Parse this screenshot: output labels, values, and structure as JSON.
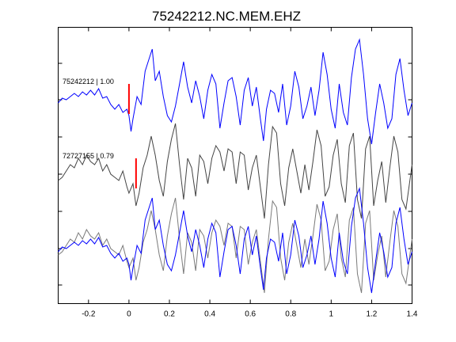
{
  "chart_data": {
    "type": "line",
    "title": "75242212.NC.MEM.EHZ",
    "xlabel": "",
    "ylabel": "",
    "xlim": [
      -0.35,
      1.4
    ],
    "xticks": [
      -0.2,
      0,
      0.2,
      0.4,
      0.6,
      0.8,
      1,
      1.2,
      1.4
    ],
    "xtick_labels": [
      "-0.2",
      "0",
      "0.2",
      "0.4",
      "0.6",
      "0.8",
      "1",
      "1.2",
      "1.4"
    ],
    "grid": false,
    "colors": {
      "blue": "#0000ff",
      "gray": "#444444",
      "gray_overlay": "#7a7a7a",
      "pick": "#ff0000"
    },
    "panels": [
      {
        "label": "75242212 | 1.00",
        "color": "#0000ff",
        "pick_time": 0.0
      },
      {
        "label": "72727155 | 0.79",
        "color": "#444444",
        "pick_time": 0.035
      },
      {
        "label": "",
        "overlay": true
      }
    ],
    "series": [
      {
        "trace": "75242212",
        "x": [
          -0.35,
          -0.33,
          -0.31,
          -0.29,
          -0.27,
          -0.25,
          -0.23,
          -0.21,
          -0.19,
          -0.17,
          -0.15,
          -0.13,
          -0.11,
          -0.09,
          -0.07,
          -0.05,
          -0.03,
          -0.01,
          0.0,
          0.01,
          0.02,
          0.04,
          0.06,
          0.08,
          0.1,
          0.115,
          0.13,
          0.15,
          0.17,
          0.19,
          0.21,
          0.23,
          0.25,
          0.27,
          0.29,
          0.31,
          0.33,
          0.35,
          0.37,
          0.39,
          0.41,
          0.43,
          0.45,
          0.47,
          0.49,
          0.51,
          0.53,
          0.55,
          0.57,
          0.59,
          0.61,
          0.63,
          0.65,
          0.665,
          0.68,
          0.7,
          0.72,
          0.74,
          0.76,
          0.78,
          0.8,
          0.82,
          0.84,
          0.86,
          0.88,
          0.9,
          0.92,
          0.94,
          0.96,
          0.98,
          1.0,
          1.02,
          1.04,
          1.06,
          1.08,
          1.1,
          1.12,
          1.14,
          1.16,
          1.18,
          1.2,
          1.22,
          1.24,
          1.26,
          1.28,
          1.3,
          1.32,
          1.34,
          1.36,
          1.38,
          1.4
        ],
        "y": [
          -0.1,
          0.05,
          0.0,
          0.1,
          0.2,
          0.1,
          0.25,
          0.15,
          0.3,
          0.15,
          0.35,
          0.05,
          0.1,
          -0.15,
          -0.3,
          -0.15,
          -0.4,
          -0.3,
          -0.5,
          -1.0,
          -0.6,
          0.1,
          -0.15,
          0.9,
          1.3,
          1.6,
          0.6,
          0.9,
          0.1,
          -0.5,
          -0.7,
          -0.2,
          0.5,
          1.2,
          0.4,
          -0.1,
          0.6,
          0.1,
          -0.6,
          0.3,
          0.8,
          0.5,
          -0.9,
          -0.1,
          0.6,
          0.7,
          0.1,
          -0.8,
          0.3,
          0.7,
          -0.2,
          0.4,
          -0.6,
          -1.3,
          -0.3,
          0.3,
          0.2,
          -0.4,
          0.5,
          -0.8,
          -0.2,
          0.9,
          0.4,
          -0.6,
          -0.2,
          0.4,
          -0.5,
          0.3,
          1.5,
          0.8,
          -0.3,
          -0.9,
          0.5,
          -0.4,
          -0.8,
          0.7,
          1.6,
          1.9,
          0.8,
          -0.6,
          -1.4,
          -0.4,
          0.5,
          -0.1,
          -0.9,
          -0.6,
          0.8,
          1.3,
          0.3,
          -0.5,
          -0.1
        ]
      },
      {
        "trace": "72727155",
        "x": [
          -0.35,
          -0.33,
          -0.31,
          -0.29,
          -0.27,
          -0.25,
          -0.23,
          -0.21,
          -0.19,
          -0.17,
          -0.15,
          -0.13,
          -0.11,
          -0.09,
          -0.07,
          -0.05,
          -0.03,
          -0.01,
          0.0,
          0.02,
          0.035,
          0.05,
          0.07,
          0.09,
          0.11,
          0.13,
          0.15,
          0.17,
          0.19,
          0.21,
          0.23,
          0.25,
          0.27,
          0.29,
          0.31,
          0.33,
          0.35,
          0.37,
          0.39,
          0.41,
          0.43,
          0.45,
          0.47,
          0.49,
          0.51,
          0.53,
          0.55,
          0.57,
          0.59,
          0.61,
          0.63,
          0.65,
          0.67,
          0.69,
          0.71,
          0.73,
          0.75,
          0.77,
          0.79,
          0.81,
          0.83,
          0.85,
          0.87,
          0.89,
          0.91,
          0.93,
          0.95,
          0.97,
          0.99,
          1.01,
          1.03,
          1.05,
          1.07,
          1.09,
          1.11,
          1.13,
          1.15,
          1.17,
          1.19,
          1.21,
          1.23,
          1.25,
          1.27,
          1.29,
          1.31,
          1.33,
          1.35,
          1.37,
          1.4
        ],
        "y": [
          -0.2,
          -0.1,
          0.1,
          0.3,
          0.2,
          0.5,
          0.3,
          0.6,
          0.4,
          0.3,
          0.5,
          0.1,
          0.3,
          0.0,
          -0.1,
          -0.2,
          0.1,
          -0.4,
          -0.6,
          -0.3,
          -1.0,
          -0.6,
          0.2,
          0.6,
          1.2,
          0.6,
          -0.2,
          -0.7,
          0.4,
          1.1,
          1.6,
          0.3,
          -0.8,
          0.5,
          0.2,
          -0.7,
          0.6,
          0.4,
          -0.3,
          0.5,
          0.9,
          0.7,
          0.1,
          0.8,
          0.7,
          -0.3,
          0.7,
          0.6,
          -0.5,
          0.2,
          0.6,
          -0.4,
          -1.4,
          0.3,
          1.5,
          1.3,
          -0.3,
          -1.0,
          0.2,
          0.8,
          0.1,
          -0.6,
          0.3,
          -0.5,
          0.4,
          1.4,
          0.9,
          -0.7,
          -0.4,
          0.6,
          1.1,
          -0.3,
          -0.9,
          0.9,
          1.3,
          -0.8,
          -1.4,
          0.8,
          1.2,
          -1.0,
          -0.2,
          0.4,
          -0.9,
          0.2,
          1.2,
          0.7,
          -0.8,
          -1.1,
          0.3
        ]
      }
    ]
  }
}
